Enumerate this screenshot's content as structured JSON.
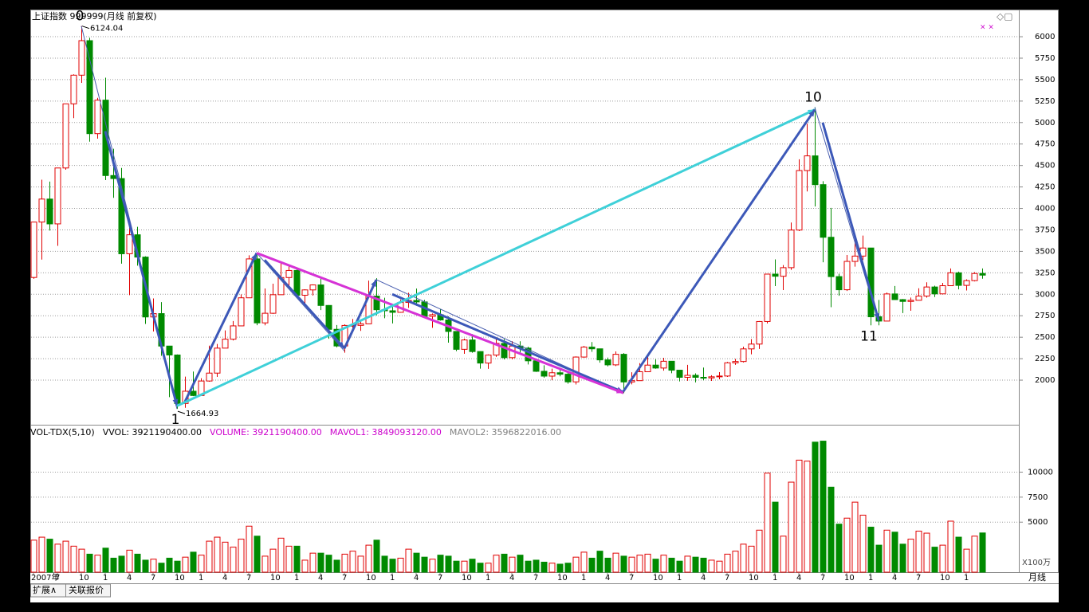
{
  "chart_data": {
    "type": "candlestick",
    "title": "上证指数 999999(月线 前复权)",
    "categories": [
      "2007年",
      null,
      null,
      "7",
      null,
      null,
      "10",
      null,
      null,
      "1",
      null,
      null,
      "4",
      null,
      null,
      "7",
      null,
      null,
      "10",
      null,
      null,
      "1",
      null,
      null,
      "4",
      null,
      null,
      "7",
      null,
      null,
      "10",
      null,
      null,
      "1",
      null,
      null,
      "4",
      null,
      null,
      "7",
      null,
      null,
      "10",
      null,
      null,
      "1",
      null,
      null,
      "4",
      null,
      null,
      "7",
      null,
      null,
      "10",
      null,
      null,
      "1",
      null,
      null,
      "4",
      null,
      null,
      "7",
      null,
      null,
      "10",
      null,
      null,
      "1",
      null,
      null,
      "4",
      null,
      null,
      "7",
      null,
      null,
      "10",
      null,
      null,
      "1",
      null,
      null,
      "4",
      null,
      null,
      "7",
      null,
      null,
      "10",
      null,
      null,
      "1",
      null,
      null,
      "4",
      null,
      null,
      "7",
      null,
      null,
      "10",
      null,
      null,
      "1",
      null,
      null,
      "4",
      null,
      null,
      "7",
      null,
      null,
      "10",
      null,
      null,
      "1",
      null,
      null
    ],
    "open": [
      3196,
      3841,
      4109,
      3820,
      4471,
      5218,
      5552,
      5954,
      4871,
      5261,
      4383,
      4348,
      3472,
      3693,
      3433,
      2736,
      2775,
      2397,
      2293,
      1728,
      1871,
      1821,
      1990,
      2082,
      2373,
      2477,
      2632,
      2959,
      3412,
      2667,
      2779,
      2995,
      3195,
      3277,
      2989,
      3051,
      3109,
      2870,
      2592,
      2398,
      2637,
      2638,
      2656,
      2979,
      2820,
      2808,
      2790,
      2905,
      2928,
      2911,
      2743,
      2762,
      2701,
      2567,
      2359,
      2468,
      2333,
      2199,
      2292,
      2428,
      2262,
      2397,
      2373,
      2225,
      2103,
      2047,
      2086,
      2069,
      1980,
      2269,
      2385,
      2365,
      2236,
      2178,
      2301,
      1979,
      1994,
      2098,
      2175,
      2141,
      2220,
      2116,
      2033,
      2056,
      2033,
      2026,
      2039,
      2048,
      2202,
      2217,
      2364,
      2420,
      2683,
      3235,
      3210,
      3310,
      3748,
      4441,
      4612,
      4277,
      3664,
      3206,
      3053,
      3383,
      3445,
      3539,
      2738,
      2688,
      3004,
      2938,
      2917,
      2930,
      2979,
      3085,
      3005,
      3100,
      3250,
      3104,
      3159,
      3242
    ],
    "high": [
      3841,
      4335,
      4312,
      4473,
      5219,
      5562,
      6124.04,
      5988,
      5288,
      5522,
      4695,
      4472,
      3786,
      3786,
      3443,
      2952,
      2909,
      2400,
      2300,
      2041,
      2100,
      2023,
      2402,
      2422,
      2579,
      2688,
      2998,
      3454,
      3478,
      3068,
      3123,
      3361,
      3338,
      3306,
      3058,
      3115,
      3181,
      2874,
      2642,
      2650,
      2713,
      2690,
      3159,
      3187,
      2960,
      2855,
      2939,
      3018,
      3067,
      2934,
      2777,
      2826,
      2743,
      2559,
      2484,
      2536,
      2336,
      2300,
      2478,
      2478,
      2454,
      2453,
      2389,
      2232,
      2173,
      2134,
      2133,
      2090,
      2276,
      2398,
      2444,
      2332,
      2263,
      2334,
      2315,
      2092,
      2198,
      2270,
      2243,
      2260,
      2219,
      2110,
      2178,
      2079,
      2147,
      2057,
      2093,
      2213,
      2248,
      2390,
      2478,
      2688,
      3239,
      3406,
      3340,
      3836,
      4572,
      4986,
      5178.19,
      4317,
      4006,
      3239,
      3457,
      3678,
      3684,
      3539,
      2934,
      3020,
      3097,
      2945,
      2962,
      3070,
      3140,
      3100,
      3133,
      3301,
      3264,
      3174,
      3258,
      3301
    ],
    "low": [
      3180,
      3404,
      3742,
      3564,
      4450,
      5051,
      5462,
      4778,
      4812,
      4330,
      4123,
      3357,
      2990,
      3333,
      2655,
      2566,
      2284,
      1802,
      1664.93,
      1678,
      1814,
      1844,
      1982,
      2037,
      2373,
      2462,
      2630,
      2959,
      2640,
      2639,
      2772,
      2995,
      3095,
      2986,
      2890,
      2985,
      2816,
      2482,
      2382,
      2319,
      2563,
      2573,
      2656,
      2754,
      2721,
      2661,
      2785,
      2842,
      2866,
      2733,
      2610,
      2693,
      2437,
      2338,
      2307,
      2319,
      2134,
      2132,
      2271,
      2242,
      2242,
      2300,
      2183,
      2096,
      2028,
      1999,
      2045,
      1959,
      1949,
      2262,
      2330,
      2204,
      2161,
      2164,
      1849,
      1951,
      1992,
      2098,
      2133,
      2111,
      2080,
      1985,
      1992,
      1974,
      1998,
      1991,
      2010,
      2038,
      2178,
      2206,
      2301,
      2364,
      2661,
      3095,
      3049,
      3285,
      3736,
      4198,
      4023,
      3373,
      2850,
      2983,
      3039,
      3322,
      3399,
      2638,
      2638,
      2733,
      2939,
      2781,
      2808,
      2931,
      2961,
      2968,
      2998,
      3104,
      3057,
      3044,
      3150,
      3181
    ],
    "close": [
      3841,
      4109,
      3820,
      4471,
      5218,
      5552,
      5954,
      4871,
      5261,
      4383,
      4348,
      3472,
      3693,
      3433,
      2736,
      2775,
      2397,
      2293,
      1728,
      1871,
      1821,
      1990,
      2082,
      2373,
      2477,
      2632,
      2959,
      3412,
      2667,
      2779,
      2995,
      3195,
      3277,
      2989,
      3051,
      3109,
      2870,
      2592,
      2398,
      2637,
      2638,
      2656,
      2979,
      2820,
      2808,
      2790,
      2905,
      2928,
      2911,
      2743,
      2762,
      2701,
      2567,
      2359,
      2468,
      2333,
      2199,
      2292,
      2428,
      2262,
      2397,
      2373,
      2225,
      2103,
      2047,
      2086,
      2069,
      1980,
      2269,
      2385,
      2365,
      2236,
      2178,
      2301,
      1979,
      1994,
      2098,
      2175,
      2141,
      2220,
      2116,
      2033,
      2056,
      2033,
      2026,
      2039,
      2048,
      2202,
      2217,
      2364,
      2420,
      2683,
      3235,
      3210,
      3310,
      3748,
      4441,
      4612,
      4277,
      3664,
      3206,
      3053,
      3383,
      3445,
      3539,
      2738,
      2688,
      3004,
      2938,
      2917,
      2930,
      2979,
      3085,
      3005,
      3100,
      3250,
      3104,
      3159,
      3242,
      3223
    ],
    "volume": [
      3200,
      3500,
      3300,
      2800,
      3100,
      2600,
      2300,
      1800,
      1700,
      2400,
      1400,
      1600,
      2200,
      1800,
      1200,
      1300,
      900,
      1400,
      1100,
      1500,
      2000,
      1700,
      3100,
      3500,
      3000,
      2500,
      3300,
      4600,
      3600,
      1600,
      2300,
      3400,
      2600,
      2600,
      1200,
      1900,
      1900,
      1700,
      1200,
      1800,
      2100,
      1600,
      2700,
      3200,
      1600,
      1300,
      1400,
      2300,
      1900,
      1500,
      1300,
      1700,
      1600,
      1100,
      1100,
      1300,
      900,
      900,
      1700,
      1800,
      1500,
      1700,
      1100,
      1200,
      1000,
      900,
      800,
      900,
      1500,
      2000,
      1400,
      2100,
      1400,
      1900,
      1600,
      1500,
      1700,
      1800,
      1300,
      1700,
      1400,
      1100,
      1600,
      1500,
      1400,
      1200,
      1100,
      1800,
      2100,
      2800,
      2600,
      4200,
      9900,
      7000,
      3600,
      9000,
      11200,
      11100,
      13000,
      13100,
      8500,
      4800,
      5400,
      7000,
      5700,
      4500,
      2700,
      4200,
      4000,
      2800,
      3300,
      4100,
      3900,
      2500,
      2700,
      5100,
      3500,
      2300,
      3600,
      3921.1904
    ],
    "up_color": "#e00000",
    "down_color": "#008a00",
    "ylim": [
      1490,
      6316
    ],
    "yticks": [
      2000,
      2250,
      2500,
      2750,
      3000,
      3250,
      3500,
      3750,
      4000,
      4250,
      4500,
      4750,
      5000,
      5250,
      5500,
      5750,
      6000
    ],
    "volume_ylim": [
      0,
      14500
    ],
    "volume_ticks": [
      5000,
      7500,
      10000
    ],
    "volume_unit": "X100万",
    "grid": true,
    "indicator_header": [
      {
        "text": "VOL-TDX(5,10)",
        "color": "#000000"
      },
      {
        "text": "VVOL: 3921190400.00",
        "color": "#000000"
      },
      {
        "text": "VOLUME: 3921190400.00",
        "color": "#cc00cc"
      },
      {
        "text": "MAVOL1: 3849093120.00",
        "color": "#cc00cc"
      },
      {
        "text": "MAVOL2: 3596822016.00",
        "color": "#808080"
      }
    ],
    "waves": [
      {
        "from": [
          6,
          6124.04
        ],
        "to": [
          18,
          1664.93
        ],
        "color": "#4a5fb0",
        "style": "thin"
      },
      {
        "from": [
          9,
          4900
        ],
        "to": [
          18,
          1700
        ],
        "color": "#3c58b8",
        "style": "thick"
      },
      {
        "from": [
          19,
          1750
        ],
        "to": [
          28,
          3480
        ],
        "color": "#3c58b8",
        "style": "thick"
      },
      {
        "from": [
          28,
          3480
        ],
        "to": [
          39,
          2340
        ],
        "color": "#4a5fb0",
        "style": "thin"
      },
      {
        "from": [
          29,
          3400
        ],
        "to": [
          39,
          2370
        ],
        "color": "#3c58b8",
        "style": "thick"
      },
      {
        "from": [
          39,
          2370
        ],
        "to": [
          43,
          3170
        ],
        "color": "#3c58b8",
        "style": "thick"
      },
      {
        "from": [
          43,
          3170
        ],
        "to": [
          74,
          1850
        ],
        "color": "#4a5fb0",
        "style": "thin"
      },
      {
        "from": [
          45,
          3000
        ],
        "to": [
          74,
          1860
        ],
        "color": "#3c58b8",
        "style": "thick"
      },
      {
        "from": [
          28,
          3480
        ],
        "to": [
          74,
          1850
        ],
        "color": "#d633d6",
        "style": "thick"
      },
      {
        "from": [
          18,
          1700
        ],
        "to": [
          98,
          5150
        ],
        "color": "#3fd0d8",
        "style": "thick"
      },
      {
        "from": [
          74,
          1870
        ],
        "to": [
          98,
          5150
        ],
        "color": "#3c58b8",
        "style": "thick"
      },
      {
        "from": [
          98,
          5178.19
        ],
        "to": [
          106,
          2680
        ],
        "color": "#4a5fb0",
        "style": "thin"
      },
      {
        "from": [
          99,
          5000
        ],
        "to": [
          106,
          2700
        ],
        "color": "#3c58b8",
        "style": "thick"
      }
    ],
    "wave_labels": [
      {
        "label": "0",
        "index": 6,
        "at": "high"
      },
      {
        "label": "1",
        "index": 18,
        "at": "low"
      },
      {
        "label": "10",
        "index": 98,
        "at": "high"
      },
      {
        "label": "11",
        "index": 105,
        "at": "low"
      }
    ],
    "price_notes": [
      {
        "index": 6,
        "at": "high"
      },
      {
        "index": 18,
        "at": "low"
      }
    ],
    "period_label": "月线",
    "tabs": [
      "扩展∧",
      "关联报价"
    ]
  }
}
